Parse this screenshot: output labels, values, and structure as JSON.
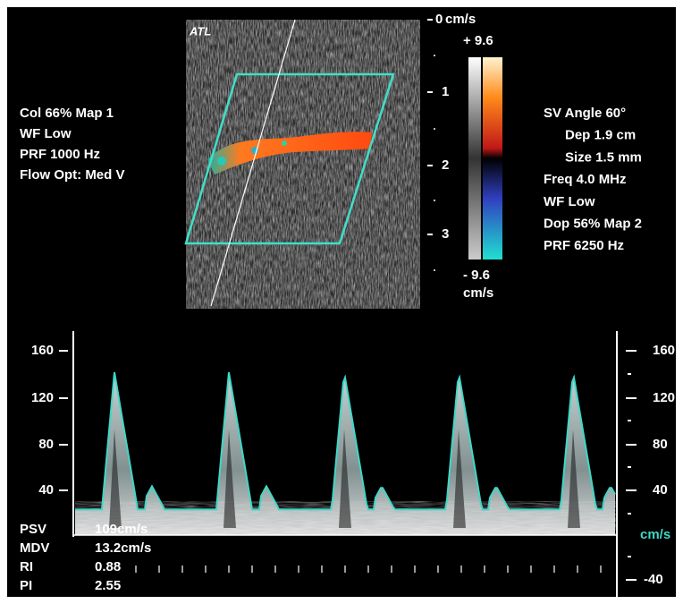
{
  "logo": "ATL",
  "color_settings": [
    "Col 66%  Map 1",
    "WF Low",
    "PRF 1000  Hz",
    "Flow Opt: Med V"
  ],
  "depth_scale": {
    "labels": [
      "0",
      "1",
      "2",
      "3"
    ]
  },
  "color_bar": {
    "unit_top": "cm/s",
    "max": "+ 9.6",
    "min": "- 9.6",
    "unit_bottom": "cm/s"
  },
  "doppler_settings": [
    "SV Angle 60°",
    "Dep 1.9  cm",
    "Size 1.5  mm",
    "Freq 4.0  MHz",
    "WF Low",
    "Dop 56%  Map 2",
    "PRF 6250  Hz"
  ],
  "spectrum": {
    "left_scale": [
      "160",
      "120",
      "80",
      "40"
    ],
    "right_scale": [
      "160",
      "120",
      "80",
      "40"
    ],
    "unit": "cm/s",
    "negative_label": "-40"
  },
  "measurements": [
    {
      "label": "PSV",
      "value": "109cm/s"
    },
    {
      "label": "MDV",
      "value": "13.2cm/s"
    },
    {
      "label": "RI",
      "value": "0.88"
    },
    {
      "label": "PI",
      "value": "2.55"
    }
  ]
}
